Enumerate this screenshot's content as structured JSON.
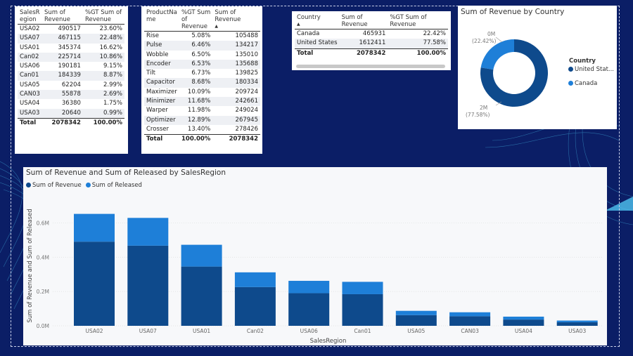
{
  "colors": {
    "dark": "#0e4a8c",
    "light": "#1e7fd8",
    "bg": "#0b1e66"
  },
  "region_table": {
    "headers": [
      "SalesR egion",
      "Sum of Revenue",
      "%GT Sum of Revenue"
    ],
    "rows": [
      [
        "USA02",
        "490517",
        "23.60%"
      ],
      [
        "USA07",
        "467115",
        "22.48%"
      ],
      [
        "USA01",
        "345374",
        "16.62%"
      ],
      [
        "Can02",
        "225714",
        "10.86%"
      ],
      [
        "USA06",
        "190181",
        "9.15%"
      ],
      [
        "Can01",
        "184339",
        "8.87%"
      ],
      [
        "USA05",
        "62204",
        "2.99%"
      ],
      [
        "CAN03",
        "55878",
        "2.69%"
      ],
      [
        "USA04",
        "36380",
        "1.75%"
      ],
      [
        "USA03",
        "20640",
        "0.99%"
      ]
    ],
    "total": [
      "Total",
      "2078342",
      "100.00%"
    ]
  },
  "product_table": {
    "headers": [
      "ProductNa me",
      "%GT Sum of Revenue",
      "Sum of Revenue"
    ],
    "rows": [
      [
        "Rise",
        "5.08%",
        "105488"
      ],
      [
        "Pulse",
        "6.46%",
        "134217"
      ],
      [
        "Wobble",
        "6.50%",
        "135010"
      ],
      [
        "Encoder",
        "6.53%",
        "135688"
      ],
      [
        "Tilt",
        "6.73%",
        "139825"
      ],
      [
        "Capacitor",
        "8.68%",
        "180334"
      ],
      [
        "Maximizer",
        "10.09%",
        "209724"
      ],
      [
        "Minimizer",
        "11.68%",
        "242661"
      ],
      [
        "Warper",
        "11.98%",
        "249024"
      ],
      [
        "Optimizer",
        "12.89%",
        "267945"
      ],
      [
        "Crosser",
        "13.40%",
        "278426"
      ]
    ],
    "total": [
      "Total",
      "100.00%",
      "2078342"
    ]
  },
  "country_table": {
    "headers": [
      "Country",
      "Sum of Revenue",
      "%GT Sum of Revenue"
    ],
    "rows": [
      [
        "Canada",
        "465931",
        "22.42%"
      ],
      [
        "United States",
        "1612411",
        "77.58%"
      ]
    ],
    "total": [
      "Total",
      "2078342",
      "100.00%"
    ]
  },
  "chart_data": [
    {
      "type": "pie",
      "title": "Sum of Revenue by Country",
      "legend_title": "Country",
      "legend_position": "right",
      "slices": [
        {
          "name": "United Stat...",
          "value": 1612411,
          "percent": "77.58%",
          "label": "2M",
          "color": "#0e4a8c"
        },
        {
          "name": "Canada",
          "value": 465931,
          "percent": "22.42%",
          "label": "0M",
          "color": "#1e7fd8"
        }
      ]
    },
    {
      "type": "bar",
      "stacked": true,
      "title": "Sum of Revenue and Sum of Released by SalesRegion",
      "xlabel": "SalesRegion",
      "ylabel": "Sum of Revenue and Sum of Released",
      "legend_position": "top-left",
      "ylim": [
        0,
        700000
      ],
      "yticks": [
        "0.0M",
        "0.2M",
        "0.4M",
        "0.6M"
      ],
      "yticks_values": [
        0,
        200000,
        400000,
        600000
      ],
      "grid": true,
      "categories": [
        "USA02",
        "USA07",
        "USA01",
        "Can02",
        "USA06",
        "Can01",
        "USA05",
        "CAN03",
        "USA04",
        "USA03"
      ],
      "series": [
        {
          "name": "Sum of Revenue",
          "color": "#0e4a8c",
          "values": [
            490517,
            467115,
            345374,
            225714,
            190181,
            184339,
            62204,
            55878,
            36380,
            20640
          ]
        },
        {
          "name": "Sum of Released",
          "color": "#1e7fd8",
          "values": [
            162000,
            162000,
            127000,
            86000,
            72000,
            72000,
            25000,
            23000,
            17000,
            10000
          ]
        }
      ]
    }
  ]
}
